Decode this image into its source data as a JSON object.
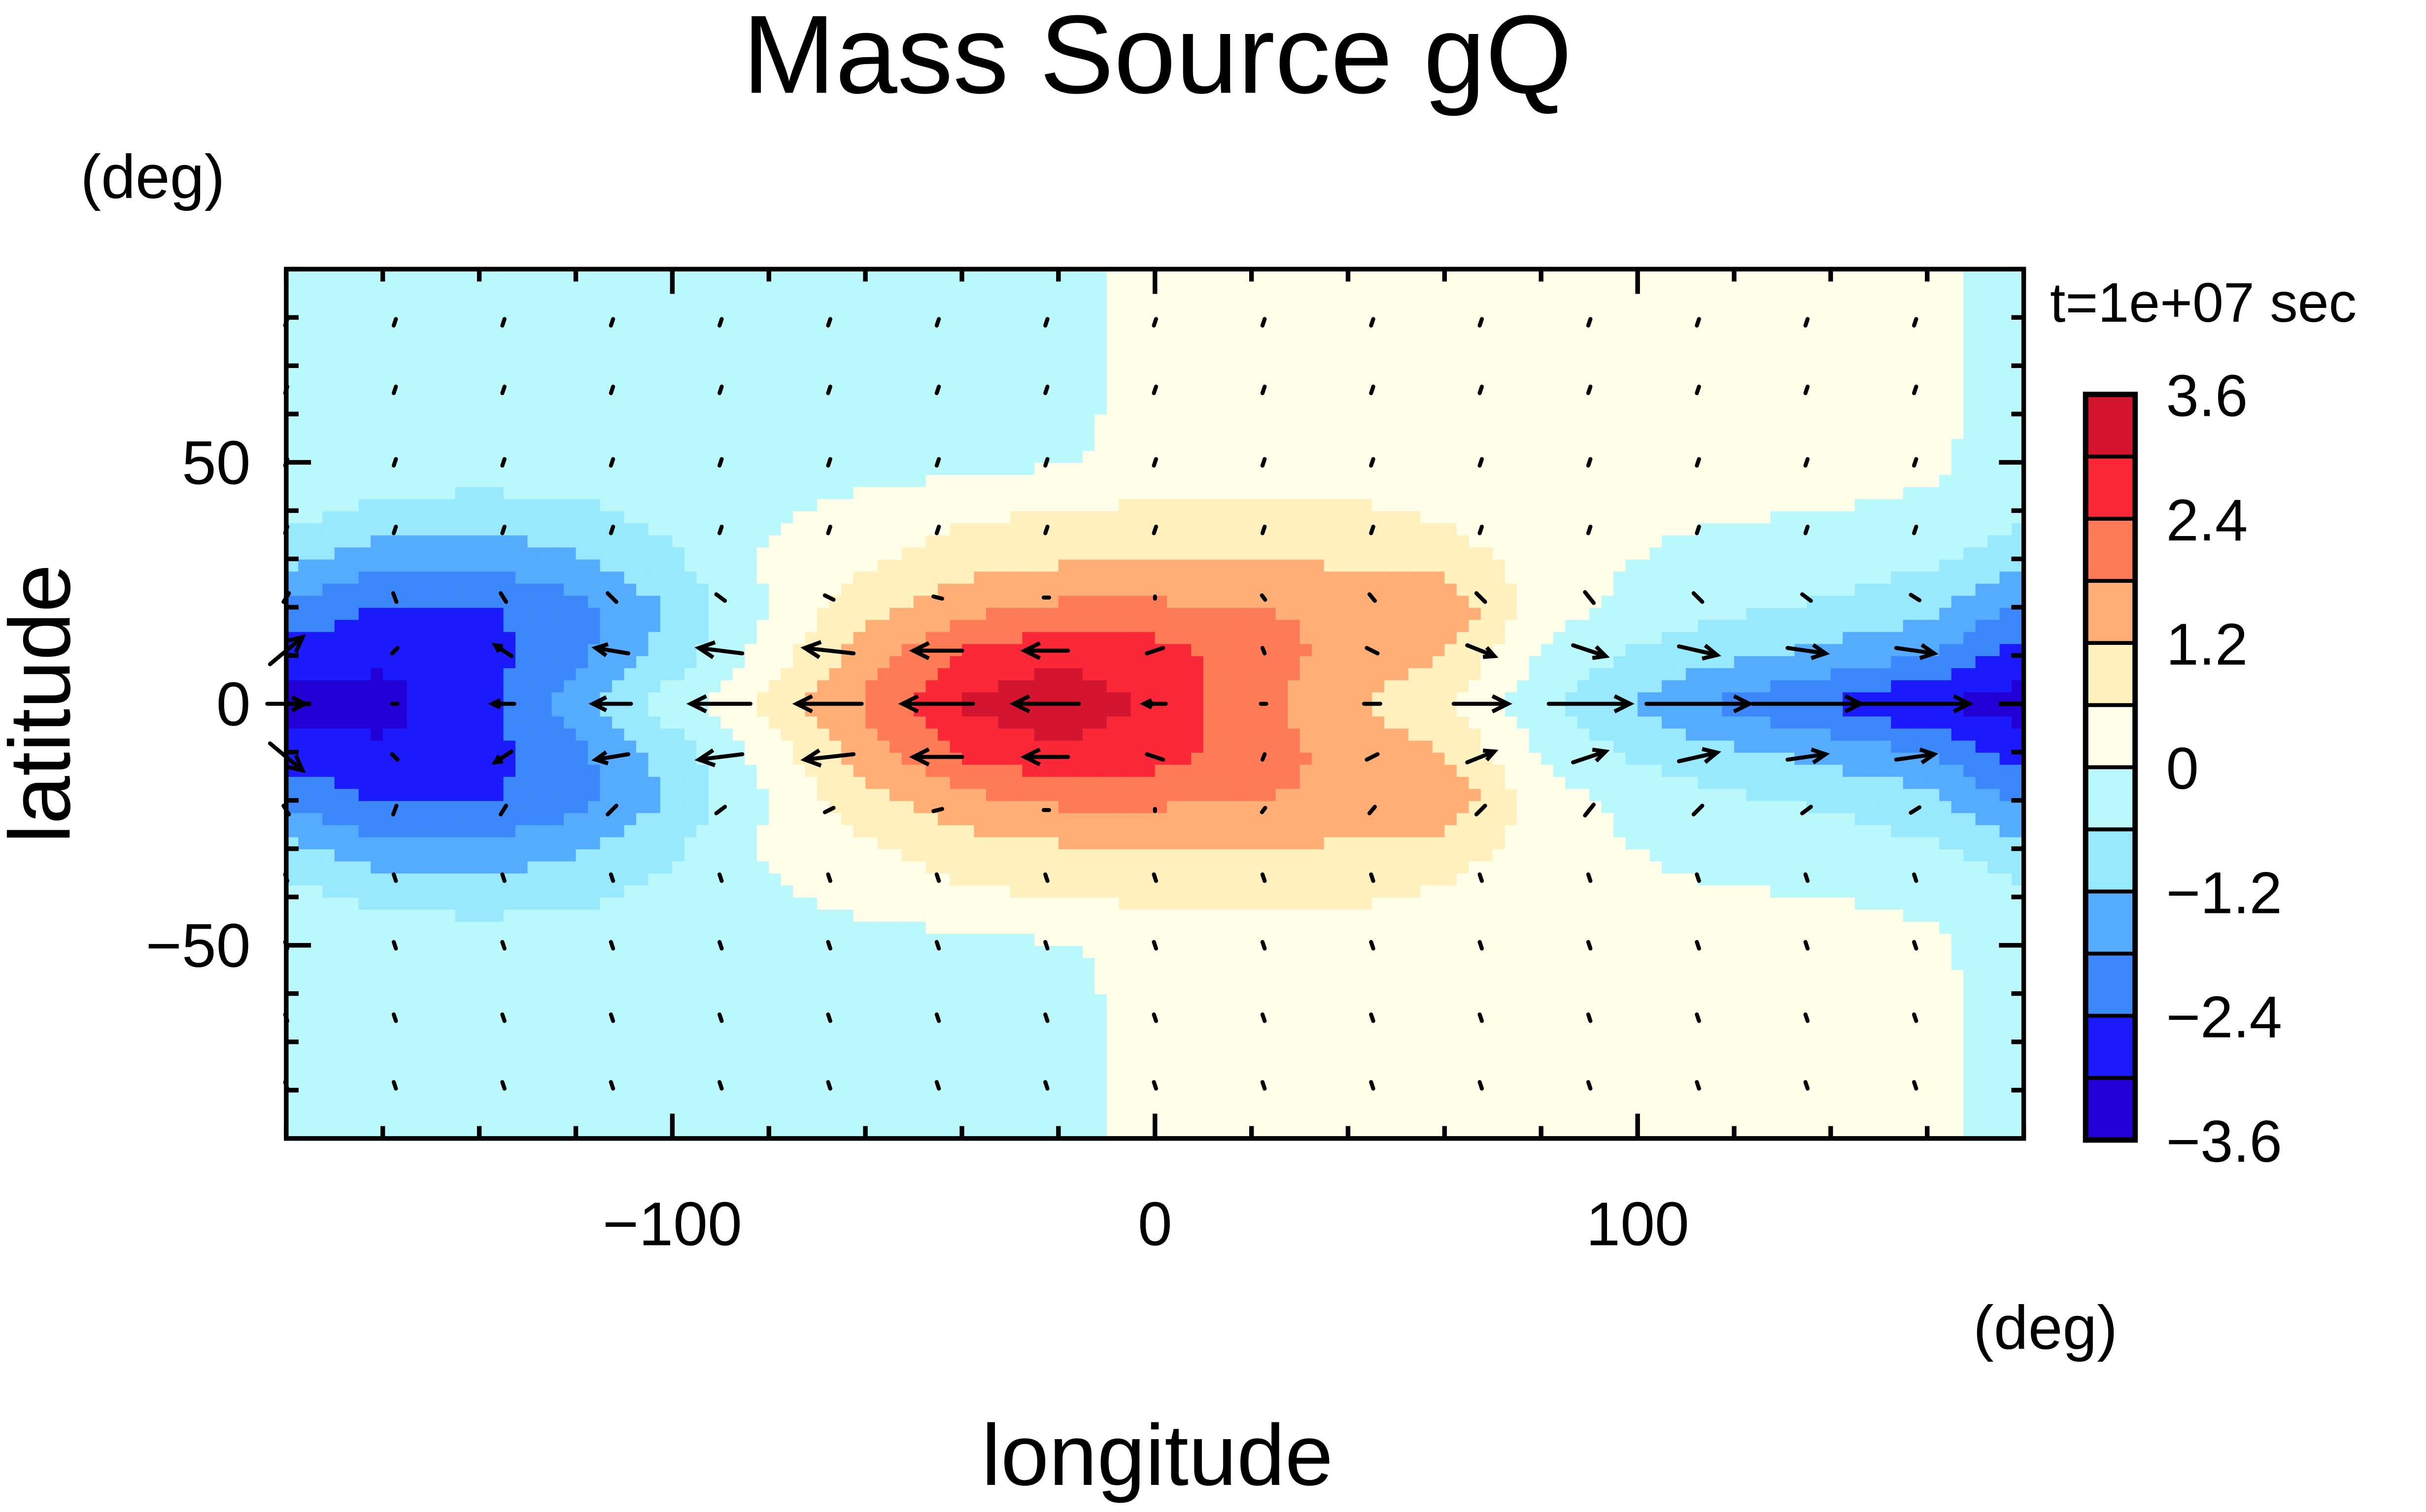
{
  "chart_data": {
    "type": "heatmap",
    "title": "Mass Source gQ",
    "xlabel": "longitude",
    "ylabel": "latitude",
    "xunit": "(deg)",
    "yunit": "(deg)",
    "time_label": "t=1e+07 sec",
    "xlim": [
      -180,
      180
    ],
    "ylim": [
      -90,
      90
    ],
    "xticks": [
      {
        "value": -100,
        "label": "−100"
      },
      {
        "value": 0,
        "label": "0"
      },
      {
        "value": 100,
        "label": "100"
      }
    ],
    "yticks": [
      {
        "value": 50,
        "label": "50"
      },
      {
        "value": 0,
        "label": "0"
      },
      {
        "value": -50,
        "label": "−50"
      }
    ],
    "colorbar": {
      "levels": [
        -3.6,
        -3.0,
        -2.4,
        -1.8,
        -1.2,
        -0.6,
        0,
        0.6,
        1.2,
        1.8,
        2.4,
        3.0,
        3.6
      ],
      "colors": [
        "#2200d6",
        "#1a1afa",
        "#3d87fd",
        "#55acfe",
        "#98e8fe",
        "#bbf8fc",
        "#fffee9",
        "#fff0be",
        "#ffaf75",
        "#ff7b55",
        "#fa2838",
        "#d41530"
      ],
      "labels": [
        {
          "value": 3.6,
          "label": "3.6"
        },
        {
          "value": 2.4,
          "label": "2.4"
        },
        {
          "value": 1.2,
          "label": "1.2"
        },
        {
          "value": 0,
          "label": "0"
        },
        {
          "value": -1.2,
          "label": "−1.2"
        },
        {
          "value": -2.4,
          "label": "−2.4"
        },
        {
          "value": -3.6,
          "label": "−3.6"
        }
      ]
    },
    "field": {
      "note_symmetry": "equatorially symmetric",
      "lons": [
        -180,
        -160,
        -140,
        -120,
        -100,
        -80,
        -60,
        -40,
        -20,
        0,
        20,
        40,
        60,
        80,
        100,
        120,
        140,
        160,
        180
      ],
      "lats": [
        0,
        10,
        20,
        30,
        40,
        50,
        60,
        70,
        80,
        90
      ],
      "values": [
        [
          -3.3,
          -3.2,
          -2.6,
          -1.5,
          -0.3,
          0.8,
          1.9,
          3.1,
          3.4,
          2.9,
          2.0,
          1.3,
          0.7,
          -0.4,
          -1.3,
          -2.0,
          -2.5,
          -3.0,
          -3.3
        ],
        [
          -2.7,
          -2.9,
          -2.7,
          -2.0,
          -0.9,
          0.3,
          1.5,
          2.5,
          2.9,
          2.7,
          2.1,
          1.6,
          1.2,
          -0.1,
          -0.7,
          -1.1,
          -1.4,
          -1.8,
          -2.7
        ],
        [
          -1.9,
          -2.5,
          -2.5,
          -2.0,
          -1.1,
          0.0,
          1.0,
          1.6,
          1.9,
          1.9,
          1.8,
          1.7,
          1.7,
          0.3,
          -0.2,
          -0.5,
          -0.7,
          -1.0,
          -1.9
        ],
        [
          -1.0,
          -1.6,
          -1.6,
          -1.3,
          -0.7,
          0.1,
          0.5,
          0.9,
          1.1,
          1.2,
          1.2,
          1.1,
          0.9,
          0.3,
          0.0,
          -0.2,
          -0.3,
          -0.5,
          -1.0
        ],
        [
          -0.4,
          -0.7,
          -0.8,
          -0.7,
          -0.4,
          -0.1,
          0.2,
          0.5,
          0.6,
          0.7,
          0.7,
          0.7,
          0.5,
          0.2,
          0.1,
          0.05,
          0.0,
          -0.1,
          -0.4
        ],
        [
          -0.3,
          -0.3,
          -0.3,
          -0.3,
          -0.3,
          -0.3,
          -0.25,
          -0.2,
          -0.05,
          0.2,
          0.3,
          0.3,
          0.3,
          0.25,
          0.2,
          0.2,
          0.2,
          0.1,
          -0.3
        ],
        [
          -0.3,
          -0.3,
          -0.3,
          -0.3,
          -0.3,
          -0.3,
          -0.3,
          -0.3,
          -0.2,
          0.25,
          0.25,
          0.25,
          0.25,
          0.25,
          0.25,
          0.25,
          0.25,
          0.15,
          -0.2
        ],
        [
          -0.3,
          -0.3,
          -0.3,
          -0.3,
          -0.3,
          -0.3,
          -0.3,
          -0.3,
          -0.2,
          0.25,
          0.25,
          0.25,
          0.25,
          0.25,
          0.25,
          0.25,
          0.25,
          0.15,
          -0.2
        ],
        [
          -0.3,
          -0.3,
          -0.3,
          -0.3,
          -0.3,
          -0.3,
          -0.3,
          -0.3,
          -0.2,
          0.25,
          0.25,
          0.25,
          0.25,
          0.25,
          0.25,
          0.25,
          0.25,
          0.15,
          -0.2
        ],
        [
          -0.3,
          -0.3,
          -0.3,
          -0.3,
          -0.3,
          -0.3,
          -0.3,
          -0.3,
          -0.2,
          0.25,
          0.25,
          0.25,
          0.25,
          0.25,
          0.25,
          0.25,
          0.25,
          0.15,
          -0.2
        ]
      ]
    },
    "vectors": {
      "lons": [
        -180,
        -157.5,
        -135,
        -112.5,
        -90,
        -67.5,
        -45,
        -22.5,
        0,
        22.5,
        45,
        67.5,
        90,
        112.5,
        135,
        157.5
      ],
      "lats": [
        0,
        11,
        22,
        36,
        50,
        65,
        79
      ],
      "u": [
        [
          0.35,
          0.05,
          -0.2,
          -0.35,
          -0.55,
          -0.6,
          -0.65,
          -0.6,
          -0.2,
          0.05,
          0.15,
          0.5,
          0.75,
          0.95,
          1.0,
          1.0
        ],
        [
          0.3,
          0.05,
          -0.15,
          -0.3,
          -0.4,
          -0.45,
          -0.45,
          -0.4,
          -0.15,
          0.02,
          0.1,
          0.25,
          0.3,
          0.35,
          0.35,
          0.35
        ],
        [
          0.05,
          -0.03,
          -0.05,
          -0.08,
          -0.08,
          -0.08,
          -0.08,
          -0.05,
          0,
          0.03,
          0.05,
          0.08,
          0.08,
          0.08,
          0.08,
          0.08
        ],
        [
          0.02,
          0.02,
          0.02,
          0.02,
          0.02,
          0.02,
          0.02,
          0.02,
          0.02,
          0.02,
          0.02,
          0.02,
          0.02,
          0.02,
          0.02,
          0.02
        ],
        [
          0.02,
          0.02,
          0.02,
          0.02,
          0.02,
          0.02,
          0.02,
          0.02,
          0.02,
          0.02,
          0.02,
          0.02,
          0.02,
          0.02,
          0.02,
          0.02
        ],
        [
          0.02,
          0.02,
          0.02,
          0.02,
          0.02,
          0.02,
          0.02,
          0.02,
          0.02,
          0.02,
          0.02,
          0.02,
          0.02,
          0.02,
          0.02,
          0.02
        ],
        [
          0.02,
          0.02,
          0.02,
          0.02,
          0.02,
          0.02,
          0.02,
          0.02,
          0.02,
          0.02,
          0.02,
          0.02,
          0.02,
          0.02,
          0.02,
          0.02
        ]
      ],
      "v": [
        [
          0,
          0,
          0,
          0,
          0,
          0,
          0,
          0,
          0,
          0,
          0,
          0,
          0,
          0,
          0,
          0
        ],
        [
          0.25,
          0.05,
          0.1,
          0.05,
          0.05,
          0.05,
          0,
          0,
          -0.05,
          -0.05,
          -0.05,
          -0.1,
          -0.1,
          -0.08,
          -0.05,
          -0.05
        ],
        [
          0.08,
          0.08,
          0.08,
          0.08,
          0.06,
          0.04,
          0.02,
          0,
          -0.02,
          -0.04,
          -0.06,
          -0.08,
          -0.1,
          -0.08,
          -0.06,
          -0.05
        ],
        [
          0.06,
          0.06,
          0.06,
          0.06,
          0.06,
          0.06,
          0.06,
          0.06,
          0.06,
          0.06,
          0.06,
          0.06,
          0.06,
          0.06,
          0.06,
          0.06
        ],
        [
          0.06,
          0.06,
          0.06,
          0.06,
          0.06,
          0.06,
          0.06,
          0.06,
          0.06,
          0.06,
          0.06,
          0.06,
          0.06,
          0.06,
          0.06,
          0.06
        ],
        [
          0.06,
          0.06,
          0.06,
          0.06,
          0.06,
          0.06,
          0.06,
          0.06,
          0.06,
          0.06,
          0.06,
          0.06,
          0.06,
          0.06,
          0.06,
          0.06
        ],
        [
          0.06,
          0.06,
          0.06,
          0.06,
          0.06,
          0.06,
          0.06,
          0.06,
          0.06,
          0.06,
          0.06,
          0.06,
          0.06,
          0.06,
          0.06,
          0.06
        ]
      ]
    }
  }
}
